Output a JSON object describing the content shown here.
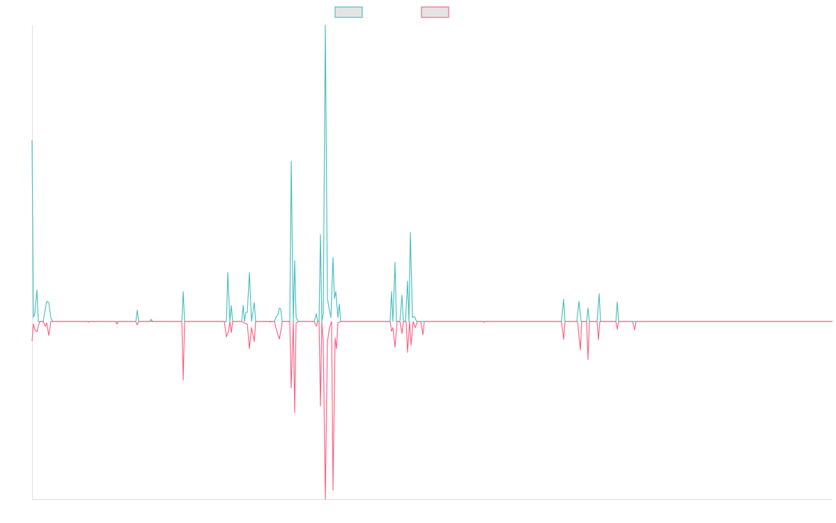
{
  "chart_data": {
    "type": "line",
    "title": "",
    "xlabel": "",
    "ylabel": "",
    "xlim": [
      0,
      1149
    ],
    "ylim": [
      -0.6,
      1.0
    ],
    "grid": false,
    "legend_placement": "top-center",
    "series": [
      {
        "name": "",
        "color": "#4bc0c0",
        "points": [
          [
            0,
            0.612
          ],
          [
            2,
            0.014
          ],
          [
            4,
            0.026
          ],
          [
            7,
            0.106
          ],
          [
            9,
            0
          ],
          [
            16,
            0
          ],
          [
            21,
            0.068
          ],
          [
            24,
            0.064
          ],
          [
            27,
            0.012
          ],
          [
            30,
            0
          ],
          [
            149,
            0
          ],
          [
            151,
            0.038
          ],
          [
            153,
            0
          ],
          [
            169,
            0
          ],
          [
            171,
            0.007
          ],
          [
            173,
            0
          ],
          [
            215,
            0
          ],
          [
            217,
            0.101
          ],
          [
            219,
            0
          ],
          [
            279,
            0
          ],
          [
            281,
            0.165
          ],
          [
            284,
            0
          ],
          [
            286,
            0.054
          ],
          [
            288,
            0
          ],
          [
            301,
            0
          ],
          [
            303,
            0.054
          ],
          [
            305,
            0
          ],
          [
            307,
            0.031
          ],
          [
            309,
            0.031
          ],
          [
            312,
            0.165
          ],
          [
            315,
            0
          ],
          [
            319,
            0.064
          ],
          [
            321,
            0
          ],
          [
            348,
            0
          ],
          [
            350,
            0.014
          ],
          [
            353,
            0.024
          ],
          [
            355,
            0.045
          ],
          [
            357,
            0.042
          ],
          [
            359,
            0
          ],
          [
            370,
            0
          ],
          [
            372,
            0.541
          ],
          [
            375,
            0
          ],
          [
            377,
            0.205
          ],
          [
            379,
            0.014
          ],
          [
            382,
            0
          ],
          [
            405,
            0
          ],
          [
            408,
            0.026
          ],
          [
            410,
            0
          ],
          [
            412,
            0
          ],
          [
            414,
            0.294
          ],
          [
            416,
            0
          ],
          [
            418,
            0.026
          ],
          [
            421,
            1.0
          ],
          [
            424,
            0.078
          ],
          [
            426,
            0.049
          ],
          [
            429,
            0.014
          ],
          [
            432,
            0.216
          ],
          [
            434,
            0.078
          ],
          [
            436,
            0.101
          ],
          [
            439,
            0.014
          ],
          [
            441,
            0.059
          ],
          [
            443,
            0
          ],
          [
            514,
            0
          ],
          [
            516,
            0.101
          ],
          [
            518,
            0
          ],
          [
            521,
            0.2
          ],
          [
            523,
            0
          ],
          [
            528,
            0
          ],
          [
            531,
            0.089
          ],
          [
            533,
            0
          ],
          [
            536,
            0
          ],
          [
            539,
            0.136
          ],
          [
            541,
            0
          ],
          [
            543,
            0.3
          ],
          [
            546,
            0.014
          ],
          [
            549,
            0.016
          ],
          [
            552,
            0
          ],
          [
            760,
            0
          ],
          [
            763,
            0.075
          ],
          [
            765,
            0
          ],
          [
            782,
            0
          ],
          [
            785,
            0.068
          ],
          [
            788,
            0
          ],
          [
            796,
            0
          ],
          [
            798,
            0.045
          ],
          [
            800,
            0
          ],
          [
            811,
            0
          ],
          [
            814,
            0.094
          ],
          [
            816,
            0
          ],
          [
            838,
            0
          ],
          [
            840,
            0.066
          ],
          [
            842,
            0
          ],
          [
            1149,
            0
          ]
        ]
      },
      {
        "name": "",
        "color": "#ff6384",
        "points": [
          [
            0,
            -0.066
          ],
          [
            2,
            -0.009
          ],
          [
            4,
            -0.028
          ],
          [
            7,
            -0.035
          ],
          [
            9,
            -0.016
          ],
          [
            11,
            0
          ],
          [
            16,
            0
          ],
          [
            19,
            -0.016
          ],
          [
            21,
            -0.005
          ],
          [
            24,
            -0.047
          ],
          [
            27,
            0
          ],
          [
            79,
            0
          ],
          [
            81,
            -0.002
          ],
          [
            83,
            0
          ],
          [
            120,
            0
          ],
          [
            122,
            -0.009
          ],
          [
            124,
            0
          ],
          [
            149,
            0
          ],
          [
            151,
            -0.012
          ],
          [
            153,
            0
          ],
          [
            215,
            0
          ],
          [
            217,
            -0.198
          ],
          [
            219,
            0
          ],
          [
            276,
            0
          ],
          [
            279,
            -0.052
          ],
          [
            282,
            -0.033
          ],
          [
            284,
            0
          ],
          [
            286,
            -0.038
          ],
          [
            288,
            0
          ],
          [
            301,
            0
          ],
          [
            305,
            -0.005
          ],
          [
            309,
            -0.009
          ],
          [
            312,
            -0.092
          ],
          [
            315,
            -0.021
          ],
          [
            319,
            -0.068
          ],
          [
            321,
            0
          ],
          [
            340,
            0
          ],
          [
            342,
            -0.002
          ],
          [
            344,
            0
          ],
          [
            348,
            0
          ],
          [
            350,
            -0.021
          ],
          [
            353,
            -0.045
          ],
          [
            355,
            -0.059
          ],
          [
            358,
            -0.021
          ],
          [
            359,
            0
          ],
          [
            370,
            0
          ],
          [
            372,
            -0.224
          ],
          [
            375,
            0
          ],
          [
            377,
            -0.308
          ],
          [
            379,
            -0.005
          ],
          [
            382,
            0
          ],
          [
            405,
            0
          ],
          [
            408,
            -0.016
          ],
          [
            410,
            0
          ],
          [
            412,
            0
          ],
          [
            414,
            -0.285
          ],
          [
            416,
            0
          ],
          [
            418,
            -0.068
          ],
          [
            421,
            -0.6
          ],
          [
            424,
            -0.068
          ],
          [
            427,
            -0.021
          ],
          [
            430,
            0
          ],
          [
            432,
            -0.569
          ],
          [
            435,
            -0.056
          ],
          [
            437,
            -0.092
          ],
          [
            439,
            -0.005
          ],
          [
            443,
            0
          ],
          [
            514,
            0
          ],
          [
            516,
            -0.033
          ],
          [
            518,
            -0.021
          ],
          [
            521,
            -0.087
          ],
          [
            524,
            0
          ],
          [
            528,
            0
          ],
          [
            531,
            -0.04
          ],
          [
            533,
            0
          ],
          [
            537,
            0
          ],
          [
            539,
            -0.104
          ],
          [
            542,
            0
          ],
          [
            544,
            -0.08
          ],
          [
            547,
            0
          ],
          [
            550,
            -0.021
          ],
          [
            553,
            0
          ],
          [
            558,
            0
          ],
          [
            561,
            -0.045
          ],
          [
            563,
            0
          ],
          [
            647,
            0
          ],
          [
            649,
            -0.002
          ],
          [
            651,
            0
          ],
          [
            760,
            0
          ],
          [
            763,
            -0.061
          ],
          [
            765,
            0
          ],
          [
            783,
            0
          ],
          [
            787,
            -0.096
          ],
          [
            789,
            0
          ],
          [
            796,
            0
          ],
          [
            798,
            -0.129
          ],
          [
            800,
            0
          ],
          [
            811,
            0
          ],
          [
            813,
            -0.061
          ],
          [
            815,
            0
          ],
          [
            838,
            0
          ],
          [
            840,
            -0.026
          ],
          [
            842,
            0
          ],
          [
            862,
            0
          ],
          [
            865,
            -0.028
          ],
          [
            867,
            0
          ],
          [
            1149,
            0
          ]
        ]
      }
    ]
  }
}
